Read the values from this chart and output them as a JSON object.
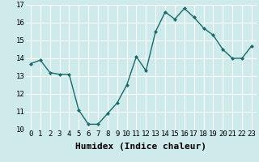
{
  "x": [
    0,
    1,
    2,
    3,
    4,
    5,
    6,
    7,
    8,
    9,
    10,
    11,
    12,
    13,
    14,
    15,
    16,
    17,
    18,
    19,
    20,
    21,
    22,
    23
  ],
  "y": [
    13.7,
    13.9,
    13.2,
    13.1,
    13.1,
    11.1,
    10.3,
    10.3,
    10.9,
    11.5,
    12.5,
    14.1,
    13.3,
    15.5,
    16.6,
    16.2,
    16.8,
    16.3,
    15.7,
    15.3,
    14.5,
    14.0,
    14.0,
    14.7
  ],
  "xlabel": "Humidex (Indice chaleur)",
  "ylim": [
    10,
    17
  ],
  "xlim": [
    -0.5,
    23.5
  ],
  "yticks": [
    10,
    11,
    12,
    13,
    14,
    15,
    16,
    17
  ],
  "xticks": [
    0,
    1,
    2,
    3,
    4,
    5,
    6,
    7,
    8,
    9,
    10,
    11,
    12,
    13,
    14,
    15,
    16,
    17,
    18,
    19,
    20,
    21,
    22,
    23
  ],
  "line_color": "#1a6b6b",
  "marker_color": "#1a6b6b",
  "bg_color": "#ceeaea",
  "grid_color": "#ffffff",
  "xlabel_fontsize": 8,
  "tick_fontsize": 6.5,
  "xlabel_fontweight": "bold"
}
